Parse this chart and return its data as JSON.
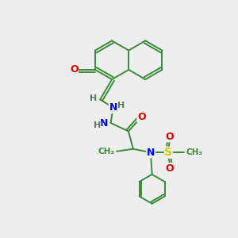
{
  "background_color": "#eeeeee",
  "bond_color": "#3a8a3a",
  "atom_colors": {
    "N": "#0000ee",
    "O": "#dd0000",
    "S": "#cccc00",
    "H": "#5a7a5a"
  },
  "lw": 1.4
}
